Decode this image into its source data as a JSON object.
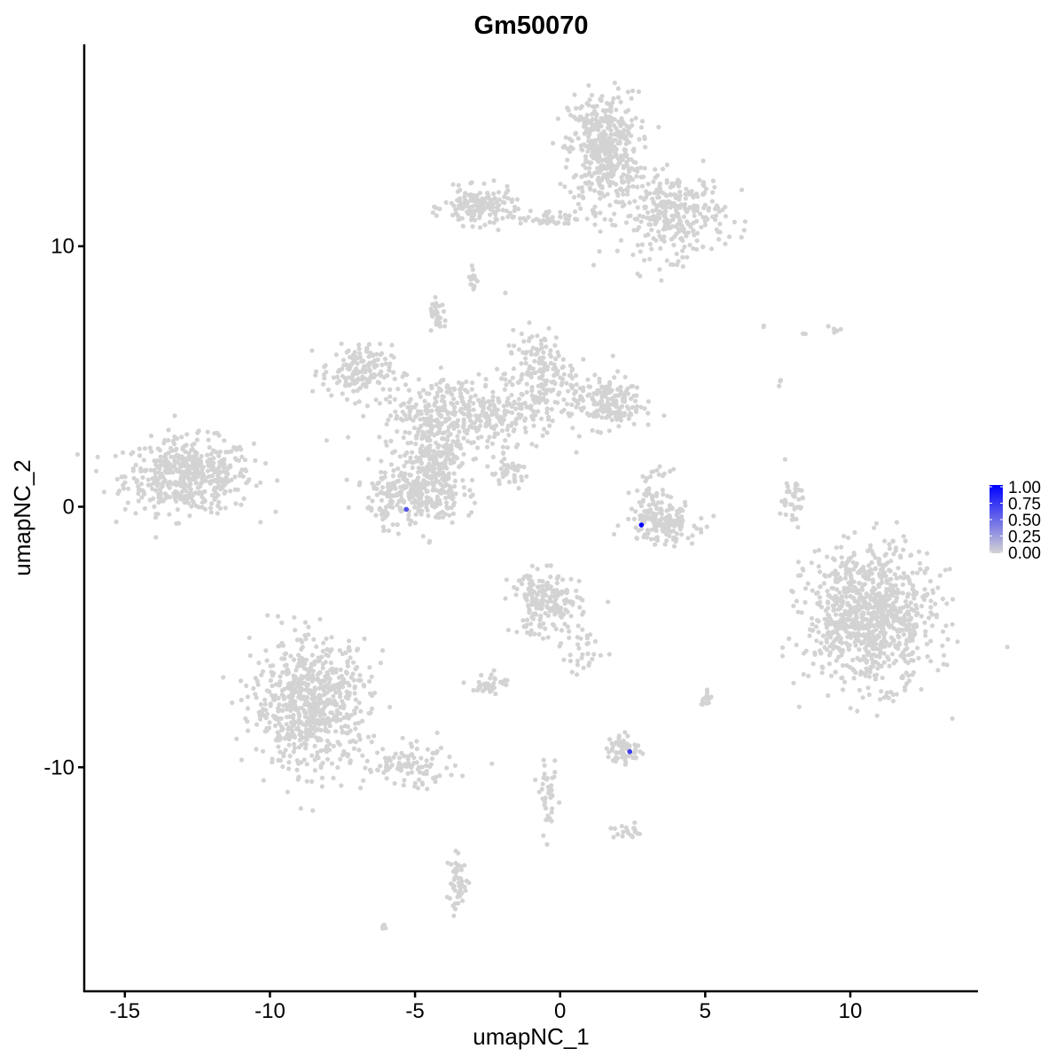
{
  "chart_data": {
    "type": "scatter",
    "title": "Gm50070",
    "xlabel": "umapNC_1",
    "ylabel": "umapNC_2",
    "xlim": [
      -16.4,
      14.4
    ],
    "ylim": [
      -18.6,
      17.75
    ],
    "xticks": [
      -15,
      -10,
      -5,
      0,
      5,
      10
    ],
    "yticks": [
      -10,
      0,
      10
    ],
    "grid": false,
    "colors": {
      "low": "#d3d3d3",
      "high": "#0000ff"
    },
    "legend": {
      "position": "right",
      "labels": [
        "1.00",
        "0.75",
        "0.50",
        "0.25",
        "0.00"
      ],
      "range": [
        0,
        1
      ]
    },
    "point_clusters_value_zero": [
      {
        "center": [
          -12.8,
          1.2
        ],
        "sd": [
          1.1,
          0.7
        ],
        "n": 500
      },
      {
        "center": [
          1.5,
          13.7
        ],
        "sd": [
          0.6,
          1.1
        ],
        "n": 450
      },
      {
        "center": [
          3.9,
          11.2
        ],
        "sd": [
          0.9,
          0.8
        ],
        "n": 300
      },
      {
        "center": [
          -2.8,
          11.5
        ],
        "sd": [
          0.6,
          0.35
        ],
        "n": 150
      },
      {
        "center": [
          -0.3,
          11.1
        ],
        "sd": [
          0.8,
          0.15
        ],
        "n": 50
      },
      {
        "center": [
          -3.0,
          8.8
        ],
        "sd": [
          0.1,
          0.3
        ],
        "n": 15
      },
      {
        "center": [
          -7.0,
          5.2
        ],
        "sd": [
          0.6,
          0.5
        ],
        "n": 150
      },
      {
        "center": [
          -3.4,
          3.6
        ],
        "sd": [
          1.4,
          0.7
        ],
        "n": 400
      },
      {
        "center": [
          -0.7,
          5.0
        ],
        "sd": [
          0.6,
          0.9
        ],
        "n": 180
      },
      {
        "center": [
          1.6,
          4.0
        ],
        "sd": [
          0.6,
          0.5
        ],
        "n": 180
      },
      {
        "center": [
          -4.2,
          2.0
        ],
        "sd": [
          0.5,
          0.6
        ],
        "n": 150
      },
      {
        "center": [
          -5.0,
          0.5
        ],
        "sd": [
          0.8,
          0.6
        ],
        "n": 300
      },
      {
        "center": [
          -4.2,
          7.3
        ],
        "sd": [
          0.15,
          0.3
        ],
        "n": 30
      },
      {
        "center": [
          -1.8,
          1.3
        ],
        "sd": [
          0.4,
          0.3
        ],
        "n": 40
      },
      {
        "center": [
          3.5,
          -0.6
        ],
        "sd": [
          0.6,
          0.4
        ],
        "n": 150
      },
      {
        "center": [
          3.2,
          0.6
        ],
        "sd": [
          0.3,
          0.4
        ],
        "n": 40
      },
      {
        "center": [
          10.7,
          -4.2
        ],
        "sd": [
          1.1,
          1.3
        ],
        "n": 900
      },
      {
        "center": [
          8.0,
          0.3
        ],
        "sd": [
          0.2,
          0.5
        ],
        "n": 40
      },
      {
        "center": [
          -8.6,
          -7.6
        ],
        "sd": [
          1.0,
          1.2
        ],
        "n": 700
      },
      {
        "center": [
          -5.2,
          -10.0
        ],
        "sd": [
          0.8,
          0.4
        ],
        "n": 100
      },
      {
        "center": [
          -0.5,
          -3.7
        ],
        "sd": [
          0.6,
          0.6
        ],
        "n": 200
      },
      {
        "center": [
          0.8,
          -5.5
        ],
        "sd": [
          0.4,
          0.5
        ],
        "n": 30
      },
      {
        "center": [
          -2.4,
          -6.8
        ],
        "sd": [
          0.3,
          0.2
        ],
        "n": 40
      },
      {
        "center": [
          2.2,
          -9.3
        ],
        "sd": [
          0.3,
          0.3
        ],
        "n": 60
      },
      {
        "center": [
          -0.4,
          -11.2
        ],
        "sd": [
          0.15,
          0.6
        ],
        "n": 40
      },
      {
        "center": [
          2.3,
          -12.5
        ],
        "sd": [
          0.3,
          0.15
        ],
        "n": 20
      },
      {
        "center": [
          -3.5,
          -14.5
        ],
        "sd": [
          0.2,
          0.5
        ],
        "n": 50
      },
      {
        "center": [
          -6.1,
          -16.1
        ],
        "sd": [
          0.05,
          0.05
        ],
        "n": 5
      },
      {
        "center": [
          5.0,
          -7.3
        ],
        "sd": [
          0.1,
          0.2
        ],
        "n": 15
      },
      {
        "center": [
          7.0,
          6.9
        ],
        "sd": [
          0.05,
          0.05
        ],
        "n": 2
      },
      {
        "center": [
          8.4,
          6.6
        ],
        "sd": [
          0.05,
          0.05
        ],
        "n": 2
      },
      {
        "center": [
          9.6,
          6.8
        ],
        "sd": [
          0.15,
          0.1
        ],
        "n": 5
      },
      {
        "center": [
          7.6,
          4.7
        ],
        "sd": [
          0.05,
          0.1
        ],
        "n": 3
      }
    ],
    "expressing_points": [
      {
        "x": -5.3,
        "y": -0.1,
        "value": 0.6
      },
      {
        "x": 2.8,
        "y": -0.7,
        "value": 1.0
      },
      {
        "x": 2.4,
        "y": -9.4,
        "value": 0.7
      }
    ]
  }
}
